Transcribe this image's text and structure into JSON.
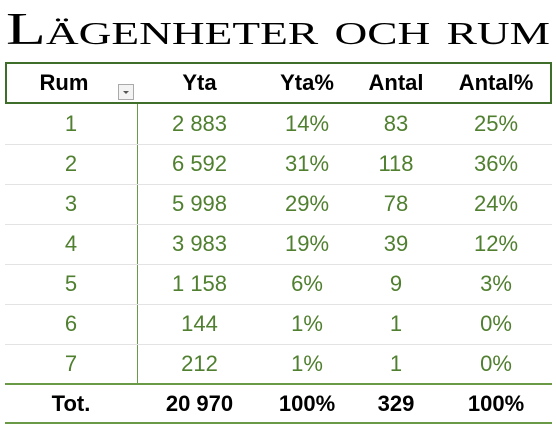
{
  "title": "Lägenheter och rum",
  "table": {
    "header": [
      "Rum",
      "Yta",
      "Yta%",
      "Antal",
      "Antal%"
    ],
    "rows": [
      [
        "1",
        "2 883",
        "14%",
        "83",
        "25%"
      ],
      [
        "2",
        "6 592",
        "31%",
        "118",
        "36%"
      ],
      [
        "3",
        "5 998",
        "29%",
        "78",
        "24%"
      ],
      [
        "4",
        "3 983",
        "19%",
        "39",
        "12%"
      ],
      [
        "5",
        "1 158",
        "6%",
        "9",
        "3%"
      ],
      [
        "6",
        "144",
        "1%",
        "1",
        "0%"
      ],
      [
        "7",
        "212",
        "1%",
        "1",
        "0%"
      ]
    ],
    "total": [
      "Tot.",
      "20 970",
      "100%",
      "329",
      "100%"
    ]
  }
}
